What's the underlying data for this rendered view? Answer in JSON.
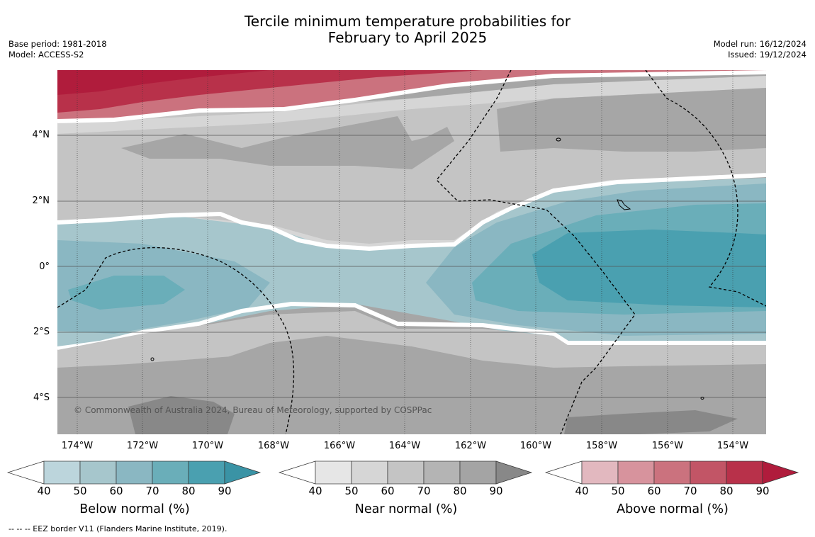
{
  "title": {
    "line1": "Tercile minimum temperature probabilities for",
    "line2": "February to April 2025"
  },
  "meta_left": {
    "base_period": "Base period: 1981-2018",
    "model": "Model: ACCESS-S2"
  },
  "meta_right": {
    "model_run": "Model run: 16/12/2024",
    "issued": "Issued: 19/12/2024"
  },
  "map": {
    "latitude_labels": [
      "4°N",
      "2°N",
      "0°",
      "2°S",
      "4°S"
    ],
    "longitude_labels": [
      "174°W",
      "172°W",
      "170°W",
      "168°W",
      "166°W",
      "164°W",
      "162°W",
      "160°W",
      "158°W",
      "156°W",
      "154°W"
    ],
    "copyright": "© Commonwealth of Australia 2024, Bureau of Meteorology, supported by COSPPac",
    "colors": {
      "background_near_90": "#a6a6a6",
      "eez_line": "#000000"
    }
  },
  "colorbars": [
    {
      "title": "Below normal (%)",
      "ticks": [
        "40",
        "50",
        "60",
        "70",
        "80",
        "90"
      ],
      "colors": [
        "#ffffff",
        "#bcd5dc",
        "#a6c6cc",
        "#8ab7c2",
        "#6aaeb9",
        "#4aa0b0",
        "#3a93a5"
      ]
    },
    {
      "title": "Near normal (%)",
      "ticks": [
        "40",
        "50",
        "60",
        "70",
        "80",
        "90"
      ],
      "colors": [
        "#ffffff",
        "#e6e6e6",
        "#d6d6d6",
        "#c4c4c4",
        "#b4b4b4",
        "#a4a4a4",
        "#888888"
      ]
    },
    {
      "title": "Above normal (%)",
      "ticks": [
        "40",
        "50",
        "60",
        "70",
        "80",
        "90"
      ],
      "colors": [
        "#ffffff",
        "#e2b8bf",
        "#d7939d",
        "#cb727e",
        "#c25566",
        "#b8314a",
        "#b01c3c"
      ]
    }
  ],
  "footnote": "--  --  -- EEZ border V11 (Flanders Marine Institute, 2019)."
}
